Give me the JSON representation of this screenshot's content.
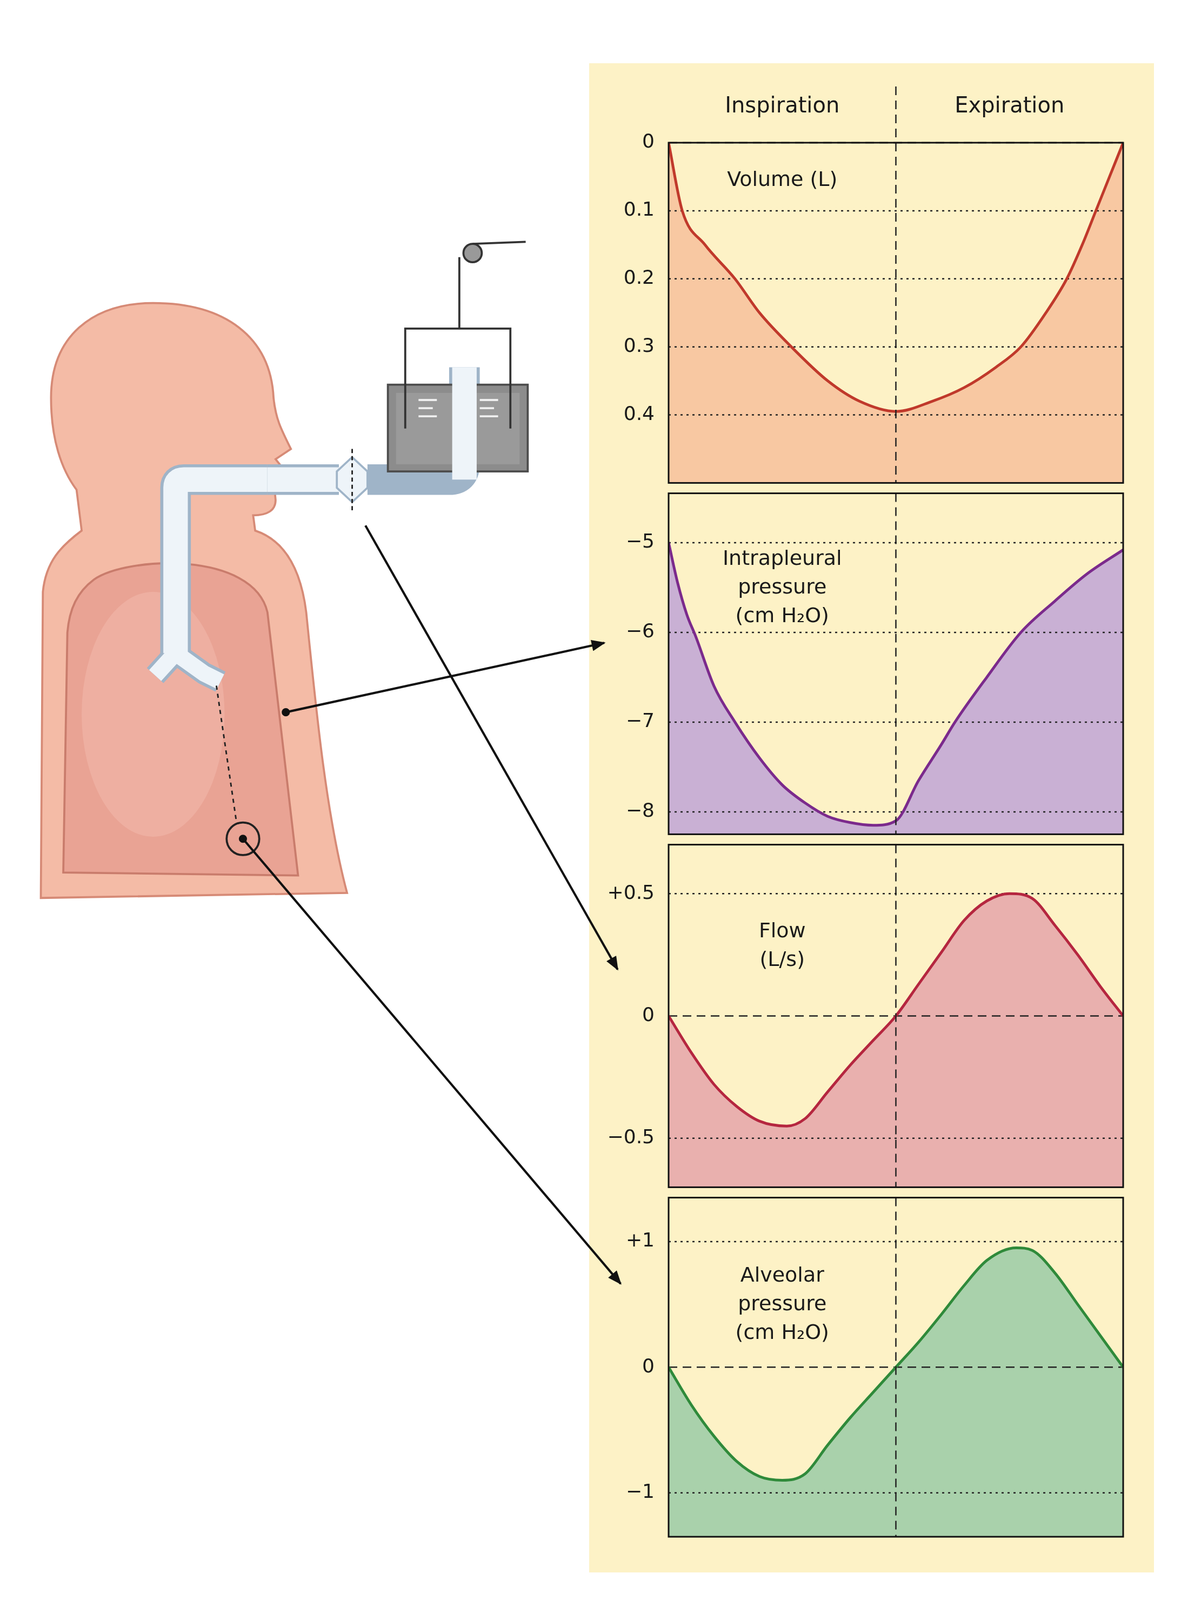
{
  "phases": {
    "labels": [
      "Inspiration",
      "Expiration"
    ],
    "boundary": 0.5
  },
  "chart_data": [
    {
      "type": "line",
      "title": [
        "Volume (L)"
      ],
      "x": [
        0,
        0.03,
        0.08,
        0.146,
        0.2,
        0.27,
        0.35,
        0.42,
        0.5,
        0.58,
        0.65,
        0.72,
        0.775,
        0.83,
        0.876,
        0.91,
        0.94,
        0.97,
        1
      ],
      "values": [
        0,
        0.1,
        0.15,
        0.2,
        0.25,
        0.3,
        0.35,
        0.38,
        0.395,
        0.38,
        0.36,
        0.33,
        0.3,
        0.25,
        0.2,
        0.15,
        0.1,
        0.05,
        0
      ],
      "color": "#c0392b",
      "xlim": [
        0,
        1
      ],
      "ylim": [
        0.5,
        0
      ],
      "yticks": [
        0,
        0.1,
        0.2,
        0.3,
        0.4
      ],
      "tick_labels": "y",
      "grid": true
    },
    {
      "type": "line",
      "title": [
        "Intrapleural",
        "pressure",
        "(cm H₂O)"
      ],
      "x": [
        0,
        0.02,
        0.04,
        0.06,
        0.1,
        0.146,
        0.2,
        0.25,
        0.3,
        0.35,
        0.4,
        0.45,
        0.5,
        0.55,
        0.6,
        0.63,
        0.7,
        0.775,
        0.85,
        0.92,
        1
      ],
      "values": [
        -5,
        -5.45,
        -5.8,
        -6.05,
        -6.6,
        -7,
        -7.4,
        -7.7,
        -7.9,
        -8.05,
        -8.12,
        -8.15,
        -8.1,
        -7.65,
        -7.25,
        -7,
        -6.5,
        -6,
        -5.65,
        -5.35,
        -5.08
      ],
      "color": "#7b2a8c",
      "xlim": [
        0,
        1
      ],
      "ylim": [
        -8.25,
        -4.45
      ],
      "yticks": [
        {
          "value": -8,
          "label": "−8"
        },
        {
          "value": -7,
          "label": "−7"
        },
        {
          "value": -6,
          "label": "−6"
        },
        {
          "value": -5,
          "label": "−5"
        }
      ],
      "tick_labels": "y",
      "grid": true
    },
    {
      "type": "line",
      "title": [
        "Flow",
        "(L/s)"
      ],
      "x": [
        0,
        0.05,
        0.1,
        0.15,
        0.2,
        0.26,
        0.3,
        0.35,
        0.4,
        0.45,
        0.5,
        0.55,
        0.6,
        0.65,
        0.7,
        0.75,
        0.8,
        0.85,
        0.9,
        0.95,
        1
      ],
      "values": [
        0,
        -0.15,
        -0.28,
        -0.37,
        -0.43,
        -0.45,
        -0.42,
        -0.31,
        -0.2,
        -0.1,
        0,
        0.13,
        0.26,
        0.39,
        0.47,
        0.5,
        0.48,
        0.37,
        0.25,
        0.12,
        0
      ],
      "color": "#b5263f",
      "xlim": [
        0,
        1
      ],
      "ylim": [
        -0.7,
        0.7
      ],
      "yticks": [
        {
          "value": -0.5,
          "label": "−0.5"
        },
        0,
        {
          "value": 0.5,
          "label": "+0.5"
        }
      ],
      "tick_labels": "y",
      "grid": true
    },
    {
      "type": "line",
      "title": [
        "Alveolar",
        "pressure",
        "(cm H₂O)"
      ],
      "x": [
        0,
        0.05,
        0.1,
        0.15,
        0.2,
        0.25,
        0.3,
        0.35,
        0.4,
        0.45,
        0.5,
        0.55,
        0.6,
        0.65,
        0.7,
        0.765,
        0.8,
        0.85,
        0.9,
        0.95,
        1
      ],
      "values": [
        0,
        -0.3,
        -0.55,
        -0.75,
        -0.87,
        -0.9,
        -0.85,
        -0.62,
        -0.4,
        -0.2,
        0,
        0.2,
        0.42,
        0.65,
        0.85,
        0.95,
        0.93,
        0.75,
        0.5,
        0.25,
        0
      ],
      "color": "#2f8a3a",
      "xlim": [
        0,
        1
      ],
      "ylim": [
        -1.35,
        1.35
      ],
      "yticks": [
        {
          "value": -1,
          "label": "−1"
        },
        0,
        {
          "value": 1,
          "label": "+1"
        }
      ],
      "tick_labels": "y",
      "grid": true
    }
  ]
}
